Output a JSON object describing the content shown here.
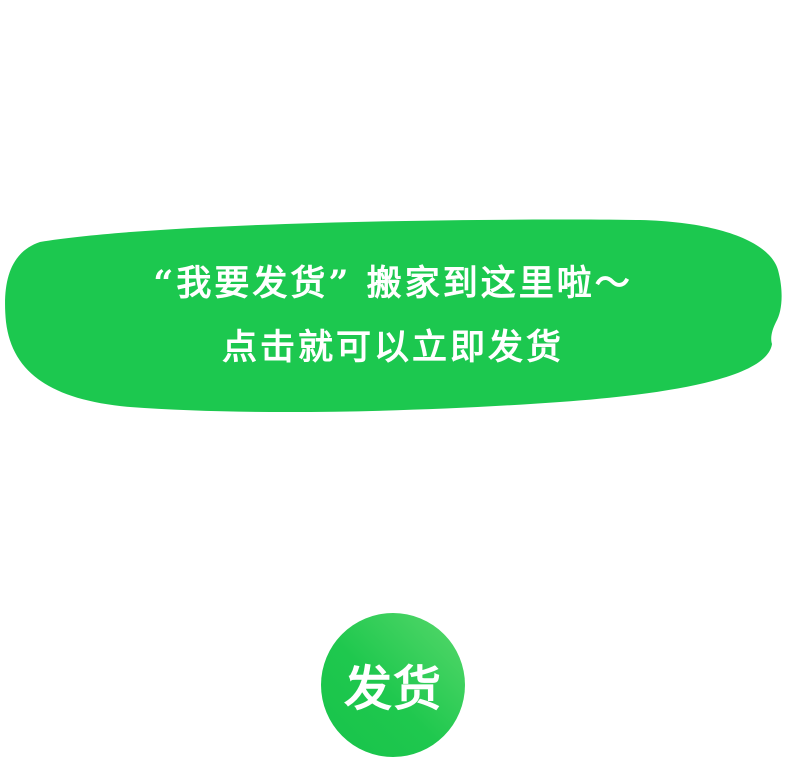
{
  "tooltip": {
    "line1": "“我要发货” 搬家到这里啦～",
    "line2": "点击就可以立即发货"
  },
  "ship_button": {
    "label": "发货"
  },
  "colors": {
    "bubble_green": "#1cc84f",
    "button_green": "#22c64f",
    "text": "#ffffff",
    "background": "#ffffff"
  }
}
